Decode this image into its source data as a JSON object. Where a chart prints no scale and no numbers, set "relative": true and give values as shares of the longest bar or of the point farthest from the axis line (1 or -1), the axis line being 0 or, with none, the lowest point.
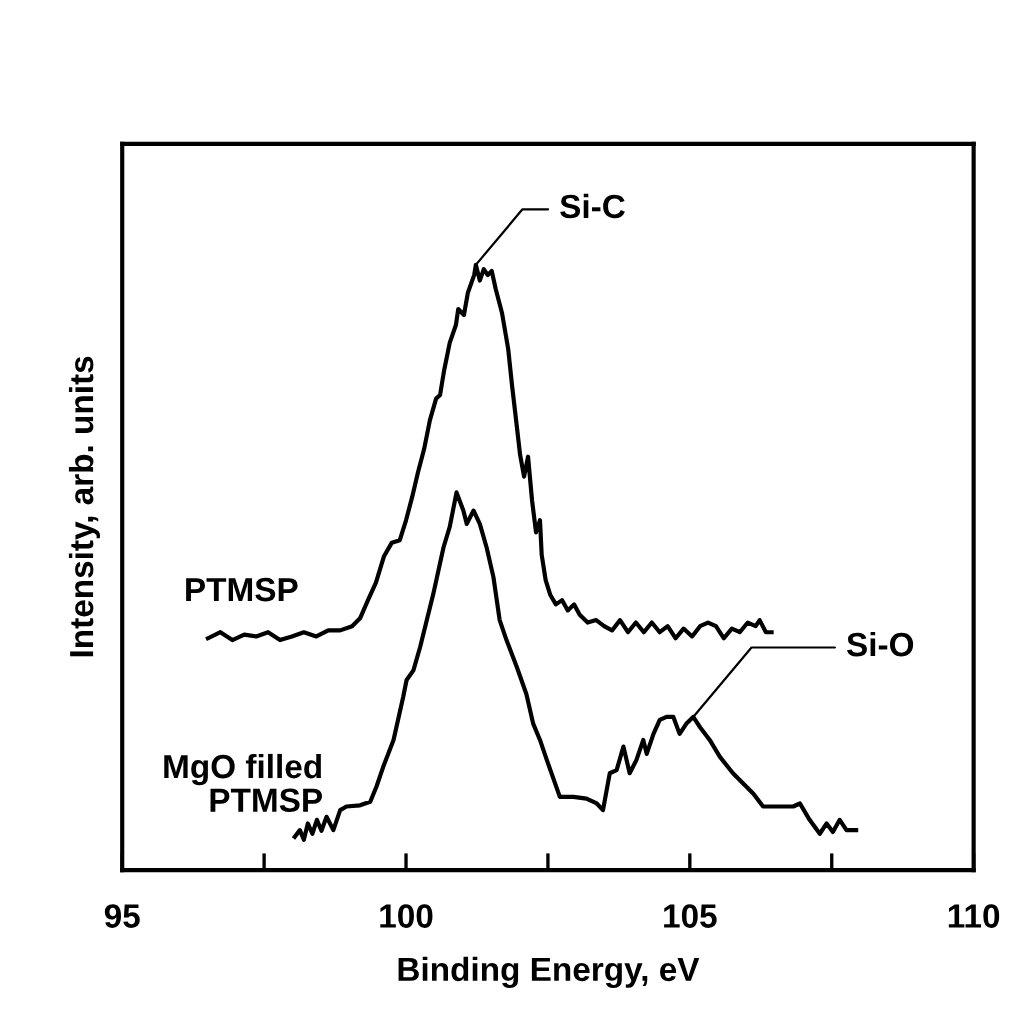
{
  "chart_data": {
    "type": "line",
    "relative": true,
    "xlabel": "Binding Energy, eV",
    "ylabel": "Intensity, arb. units",
    "xlim": [
      95,
      110
    ],
    "xticks": [
      95,
      {
        "value": 97.5,
        "label": null
      },
      100,
      {
        "value": 102.5,
        "label": null
      },
      105,
      {
        "value": 107.5,
        "label": null
      },
      110
    ],
    "tick_labels": "x",
    "grid": false,
    "legend": false,
    "marker": "none",
    "line_style": "solid",
    "annotations": [
      {
        "text": "Si-C",
        "x": 101.23,
        "y": 1.0
      },
      {
        "text": "Si-O",
        "x": 105.06,
        "y": 0.253
      }
    ],
    "series": [
      {
        "name": "PTMSP",
        "color": "#000000",
        "x": [
          96.51,
          96.73,
          96.94,
          97.15,
          97.36,
          97.57,
          97.78,
          97.99,
          98.2,
          98.42,
          98.63,
          98.84,
          99.05,
          99.19,
          99.33,
          99.47,
          99.61,
          99.75,
          99.89,
          100.0,
          100.11,
          100.21,
          100.32,
          100.42,
          100.53,
          100.6,
          100.67,
          100.77,
          100.88,
          100.92,
          101.02,
          101.09,
          101.2,
          101.23,
          101.3,
          101.37,
          101.44,
          101.51,
          101.58,
          101.69,
          101.8,
          101.87,
          101.94,
          102.01,
          102.08,
          102.15,
          102.22,
          102.29,
          102.36,
          102.39,
          102.46,
          102.54,
          102.64,
          102.75,
          102.85,
          102.96,
          103.06,
          103.2,
          103.35,
          103.49,
          103.63,
          103.77,
          103.91,
          104.05,
          104.19,
          104.33,
          104.47,
          104.61,
          104.75,
          104.89,
          105.04,
          105.18,
          105.32,
          105.46,
          105.6,
          105.74,
          105.88,
          106.02,
          106.16,
          106.23,
          106.34,
          106.44
        ],
        "values": [
          0.383,
          0.393,
          0.38,
          0.389,
          0.386,
          0.393,
          0.38,
          0.386,
          0.393,
          0.386,
          0.396,
          0.396,
          0.403,
          0.416,
          0.446,
          0.475,
          0.518,
          0.541,
          0.545,
          0.578,
          0.617,
          0.657,
          0.696,
          0.743,
          0.779,
          0.785,
          0.825,
          0.871,
          0.901,
          0.927,
          0.917,
          0.954,
          0.983,
          1.0,
          0.974,
          0.993,
          0.983,
          0.99,
          0.96,
          0.921,
          0.861,
          0.799,
          0.743,
          0.686,
          0.65,
          0.683,
          0.611,
          0.558,
          0.578,
          0.521,
          0.479,
          0.455,
          0.439,
          0.446,
          0.429,
          0.439,
          0.422,
          0.409,
          0.413,
          0.403,
          0.396,
          0.413,
          0.393,
          0.409,
          0.393,
          0.409,
          0.393,
          0.403,
          0.383,
          0.399,
          0.386,
          0.403,
          0.409,
          0.403,
          0.383,
          0.399,
          0.393,
          0.409,
          0.403,
          0.413,
          0.393,
          0.393
        ]
      },
      {
        "name": "MgO filled\nPTMSP",
        "color": "#000000",
        "x": [
          98.04,
          98.13,
          98.2,
          98.27,
          98.35,
          98.43,
          98.51,
          98.6,
          98.72,
          98.84,
          98.95,
          99.19,
          99.37,
          99.48,
          99.6,
          99.78,
          99.95,
          100.01,
          100.13,
          100.25,
          100.48,
          100.66,
          100.77,
          100.89,
          101.01,
          101.07,
          101.19,
          101.3,
          101.42,
          101.54,
          101.65,
          101.77,
          101.95,
          102.12,
          102.24,
          102.36,
          102.48,
          102.71,
          102.95,
          103.18,
          103.36,
          103.47,
          103.59,
          103.71,
          103.83,
          103.94,
          104.06,
          104.18,
          104.24,
          104.36,
          104.47,
          104.59,
          104.71,
          104.82,
          104.94,
          105.06,
          105.18,
          105.35,
          105.53,
          105.76,
          105.94,
          106.12,
          106.29,
          106.47,
          106.64,
          106.82,
          106.94,
          107.11,
          107.29,
          107.41,
          107.52,
          107.64,
          107.76,
          107.93
        ],
        "values": [
          0.055,
          0.066,
          0.05,
          0.077,
          0.06,
          0.083,
          0.065,
          0.088,
          0.066,
          0.099,
          0.105,
          0.107,
          0.113,
          0.138,
          0.171,
          0.215,
          0.286,
          0.314,
          0.33,
          0.369,
          0.456,
          0.533,
          0.567,
          0.624,
          0.594,
          0.572,
          0.594,
          0.572,
          0.533,
          0.484,
          0.413,
          0.38,
          0.336,
          0.291,
          0.242,
          0.215,
          0.182,
          0.121,
          0.121,
          0.118,
          0.11,
          0.099,
          0.16,
          0.165,
          0.204,
          0.16,
          0.182,
          0.215,
          0.192,
          0.225,
          0.248,
          0.253,
          0.253,
          0.225,
          0.242,
          0.253,
          0.236,
          0.215,
          0.187,
          0.16,
          0.143,
          0.126,
          0.105,
          0.105,
          0.105,
          0.105,
          0.11,
          0.083,
          0.06,
          0.077,
          0.063,
          0.083,
          0.066,
          0.066
        ]
      }
    ]
  }
}
